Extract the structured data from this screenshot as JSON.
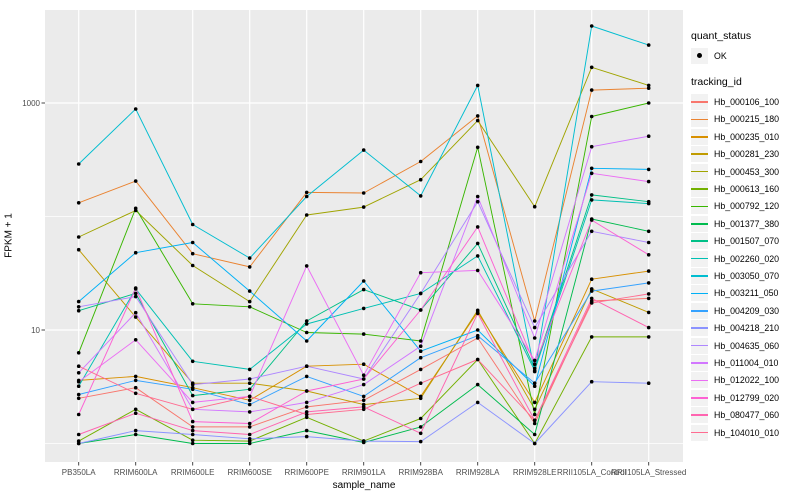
{
  "figure": {
    "panel_bg": "#EBEBEB",
    "grid_color": "#FFFFFF",
    "point_color": "#000000",
    "tick_color": "#333333",
    "tick_label_color": "#4D4D4D"
  },
  "axes": {
    "x_title": "sample_name",
    "y_title": "FPKM + 1",
    "y_scale": "log10",
    "y_tick_labels": [
      "1000",
      "10"
    ],
    "y_tick_values": [
      1000,
      10
    ],
    "y_minor_gridline_values": [
      100,
      1
    ]
  },
  "legend": {
    "quant_status_title": "quant_status",
    "ok_label": "OK",
    "tracking_title": "tracking_id"
  },
  "chart_data": {
    "type": "line",
    "title": "",
    "xlabel": "sample_name",
    "ylabel": "FPKM + 1",
    "y_scale": "log10",
    "ylim": [
      0.7,
      6600
    ],
    "y_ticks": [
      10,
      1000
    ],
    "grid": true,
    "legend_position": "right",
    "categories": [
      "PB350LA",
      "RRIM600LA",
      "RRIM600LE",
      "RRIM600SE",
      "RRIM600PE",
      "RRIM901LA",
      "RRIM928BA",
      "RRIM928LA",
      "RRIM928LE",
      "RRII105LA_Control",
      "RRII105LA_Stressed"
    ],
    "series": [
      {
        "tracking_id": "Hb_000106_100",
        "color": "#F8766D",
        "values": [
          2.5,
          3.1,
          1.4,
          1.4,
          2.1,
          2.4,
          4.5,
          8.5,
          1.5,
          18,
          19
        ]
      },
      {
        "tracking_id": "Hb_000215_180",
        "color": "#EA8331",
        "values": [
          132,
          205,
          47,
          36,
          163,
          161,
          305,
          770,
          12,
          1300,
          1350
        ]
      },
      {
        "tracking_id": "Hb_000235_010",
        "color": "#D89000",
        "values": [
          3.6,
          3.9,
          3.1,
          2.4,
          4.8,
          5.0,
          2.6,
          14.4,
          2.3,
          28,
          33
        ]
      },
      {
        "tracking_id": "Hb_000281_230",
        "color": "#C09B00",
        "values": [
          51,
          13,
          3.4,
          3.4,
          2.9,
          2.2,
          2.5,
          14.9,
          2.0,
          23,
          14.3
        ]
      },
      {
        "tracking_id": "Hb_000453_300",
        "color": "#A0A400",
        "values": [
          66,
          113,
          37,
          17.8,
          103,
          121,
          211,
          700,
          122,
          2065,
          1430
        ]
      },
      {
        "tracking_id": "Hb_000613_160",
        "color": "#73B000",
        "values": [
          1.05,
          2.0,
          1.07,
          1.05,
          1.7,
          1.05,
          1.66,
          5.5,
          1.0,
          8.7,
          8.7
        ]
      },
      {
        "tracking_id": "Hb_000792_120",
        "color": "#39B600",
        "values": [
          6.3,
          118,
          17,
          16,
          9.5,
          9.2,
          8.0,
          407,
          1.8,
          760,
          1000
        ]
      },
      {
        "tracking_id": "Hb_001377_380",
        "color": "#00BB4E",
        "values": [
          1.0,
          1.2,
          1.0,
          1.0,
          1.3,
          1.02,
          1.4,
          3.3,
          1.2,
          95,
          74
        ]
      },
      {
        "tracking_id": "Hb_001507_070",
        "color": "#00C087",
        "values": [
          14.8,
          21,
          2.64,
          3.0,
          12,
          22.7,
          15,
          58,
          4.6,
          155,
          135
        ]
      },
      {
        "tracking_id": "Hb_002260_020",
        "color": "#00C0B3",
        "values": [
          3.2,
          23,
          5.3,
          4.5,
          11.3,
          15.5,
          21,
          45,
          4.4,
          140,
          130
        ]
      },
      {
        "tracking_id": "Hb_003050_070",
        "color": "#00BDD0",
        "values": [
          290,
          886,
          85,
          43,
          150,
          385,
          152,
          1430,
          4.3,
          4770,
          3240
        ]
      },
      {
        "tracking_id": "Hb_003211_050",
        "color": "#00B0F6",
        "values": [
          17.8,
          48,
          59,
          22,
          8.0,
          27,
          6.5,
          10,
          3.2,
          266,
          260
        ]
      },
      {
        "tracking_id": "Hb_004209_030",
        "color": "#35A2FF",
        "values": [
          2.7,
          3.6,
          3.0,
          2.2,
          3.9,
          2.6,
          5.7,
          8.9,
          3.4,
          22,
          26
        ]
      },
      {
        "tracking_id": "Hb_004218_210",
        "color": "#8B93FF",
        "values": [
          1.0,
          1.3,
          1.2,
          1.1,
          1.15,
          1.05,
          1.04,
          2.3,
          1.0,
          3.5,
          3.4
        ]
      },
      {
        "tracking_id": "Hb_004635_060",
        "color": "#AE87FF",
        "values": [
          16,
          19.7,
          3.3,
          3.7,
          4.8,
          3.7,
          21,
          135,
          10.5,
          74,
          59
        ]
      },
      {
        "tracking_id": "Hb_011004_010",
        "color": "#D277FF",
        "values": [
          4.2,
          14.2,
          2.0,
          1.9,
          2.3,
          3.3,
          7.2,
          150,
          8.5,
          412,
          510
        ]
      },
      {
        "tracking_id": "Hb_012022_100",
        "color": "#EB6DF4",
        "values": [
          3.5,
          8.2,
          2.3,
          2.6,
          36.7,
          4.0,
          32,
          33.5,
          5.4,
          240,
          203
        ]
      },
      {
        "tracking_id": "Hb_012799_020",
        "color": "#FD61D3",
        "values": [
          1.8,
          23.4,
          1.56,
          1.5,
          2.9,
          3.7,
          15,
          81,
          5.0,
          93,
          46
        ]
      },
      {
        "tracking_id": "Hb_080477_060",
        "color": "#FF64B0",
        "values": [
          1.2,
          1.85,
          1.3,
          1.2,
          1.9,
          2.1,
          1.23,
          14,
          1.6,
          19,
          10.5
        ]
      },
      {
        "tracking_id": "Hb_104010_010",
        "color": "#FF6C91",
        "values": [
          4.8,
          2.77,
          2.0,
          2.6,
          1.8,
          2.0,
          3.4,
          5.5,
          1.6,
          17.3,
          20.8
        ]
      }
    ]
  }
}
